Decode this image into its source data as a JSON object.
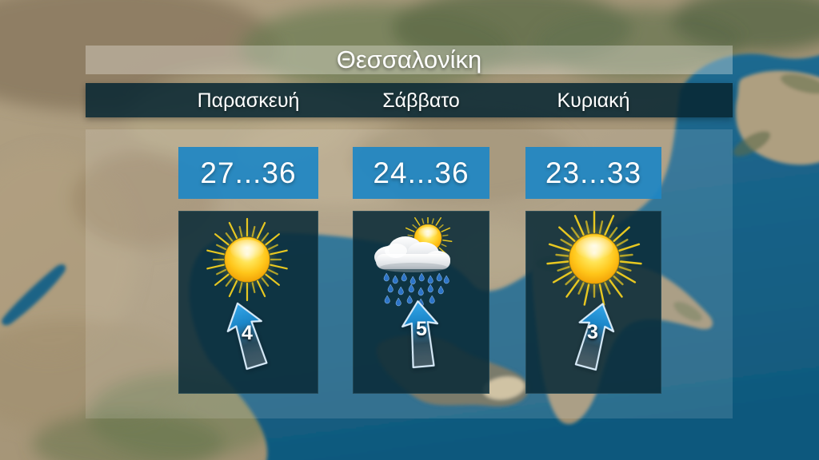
{
  "location": {
    "title": "Θεσσαλονίκη"
  },
  "days": [
    {
      "label": "Παρασκευή",
      "temp_range": "27...36",
      "temp_min": 27,
      "temp_max": 36,
      "icon": "sunny",
      "wind": {
        "force": "4",
        "direction_deg": -17
      }
    },
    {
      "label": "Σάββατο",
      "temp_range": "24...36",
      "temp_min": 24,
      "temp_max": 36,
      "icon": "sun-cloud-rain",
      "wind": {
        "force": "5",
        "direction_deg": -5
      }
    },
    {
      "label": "Κυριακή",
      "temp_range": "23...33",
      "temp_min": 23,
      "temp_max": 33,
      "icon": "sunny",
      "wind": {
        "force": "3",
        "direction_deg": 15
      }
    }
  ],
  "colors": {
    "temp_box_blue": "#1f86c2",
    "days_bar_dark": "#082733",
    "icon_panel_dark": "#092b37",
    "arrow_blue": "#2da0e8",
    "sea_blue": "#115a7e",
    "land_tan": "#ab9b7e"
  }
}
